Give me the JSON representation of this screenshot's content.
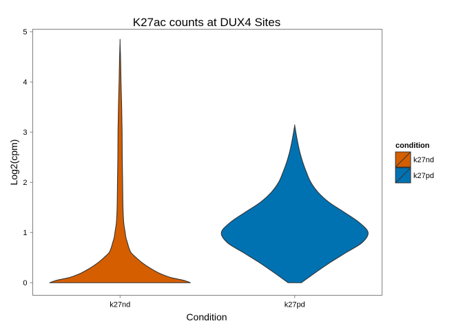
{
  "chart_data": {
    "type": "violin",
    "title": "K27ac counts at DUX4 Sites",
    "xlabel": "Condition",
    "ylabel": "Log2(cpm)",
    "categories": [
      "k27nd",
      "k27pd"
    ],
    "ylim": [
      -0.25,
      5.05
    ],
    "yticks": [
      0,
      1,
      2,
      3,
      4,
      5
    ],
    "grid": false,
    "legend": {
      "title": "condition",
      "placement": "right",
      "entries": [
        "k27nd",
        "k27pd"
      ]
    },
    "series": [
      {
        "name": "k27nd",
        "color": "#D55E00",
        "profile": [
          [
            0.0,
            0.96
          ],
          [
            0.05,
            0.86
          ],
          [
            0.1,
            0.7
          ],
          [
            0.15,
            0.6
          ],
          [
            0.2,
            0.52
          ],
          [
            0.3,
            0.4
          ],
          [
            0.4,
            0.3
          ],
          [
            0.5,
            0.22
          ],
          [
            0.6,
            0.15
          ],
          [
            0.7,
            0.12
          ],
          [
            0.8,
            0.1
          ],
          [
            0.9,
            0.08
          ],
          [
            1.0,
            0.07
          ],
          [
            1.2,
            0.05
          ],
          [
            1.5,
            0.04
          ],
          [
            2.0,
            0.035
          ],
          [
            2.5,
            0.03
          ],
          [
            3.0,
            0.028
          ],
          [
            3.5,
            0.022
          ],
          [
            4.0,
            0.013
          ],
          [
            4.4,
            0.008
          ],
          [
            4.8,
            0.0
          ]
        ]
      },
      {
        "name": "k27pd",
        "color": "#0072B2",
        "profile": [
          [
            0.0,
            0.09
          ],
          [
            0.2,
            0.28
          ],
          [
            0.4,
            0.48
          ],
          [
            0.6,
            0.7
          ],
          [
            0.8,
            0.92
          ],
          [
            1.0,
            1.0
          ],
          [
            1.2,
            0.88
          ],
          [
            1.4,
            0.68
          ],
          [
            1.6,
            0.47
          ],
          [
            1.8,
            0.32
          ],
          [
            2.0,
            0.22
          ],
          [
            2.2,
            0.16
          ],
          [
            2.4,
            0.11
          ],
          [
            2.6,
            0.07
          ],
          [
            2.8,
            0.04
          ],
          [
            3.0,
            0.015
          ],
          [
            3.13,
            0.0
          ]
        ]
      }
    ]
  }
}
